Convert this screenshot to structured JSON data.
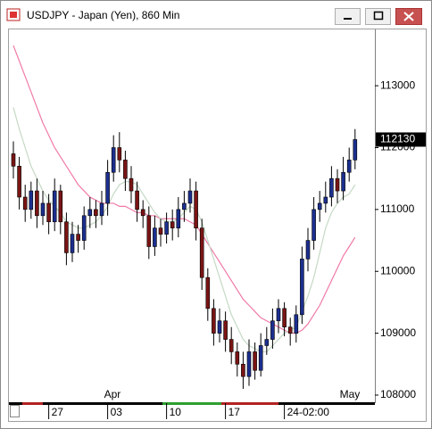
{
  "chart_data": {
    "type": "candlestick",
    "title": "USDJPY - Japan (Yen), 860 Min",
    "categories": [
      null,
      null,
      null,
      null,
      null,
      null,
      "27",
      null,
      null,
      null,
      null,
      null,
      null,
      null,
      null,
      null,
      "03",
      null,
      null,
      null,
      null,
      null,
      null,
      null,
      null,
      null,
      "10",
      null,
      null,
      null,
      null,
      null,
      null,
      null,
      null,
      null,
      "17",
      null,
      null,
      null,
      null,
      null,
      null,
      null,
      null,
      null,
      "24-02:00",
      null,
      null,
      null,
      null,
      null,
      null,
      null,
      null,
      null,
      null,
      null,
      null
    ],
    "months": [
      null,
      null,
      null,
      null,
      null,
      null,
      null,
      null,
      null,
      null,
      null,
      null,
      null,
      null,
      null,
      null,
      "Apr",
      null,
      null,
      null,
      null,
      null,
      null,
      null,
      null,
      null,
      null,
      null,
      null,
      null,
      null,
      null,
      null,
      null,
      null,
      null,
      null,
      null,
      null,
      null,
      null,
      null,
      null,
      null,
      null,
      null,
      null,
      null,
      null,
      null,
      null,
      null,
      null,
      null,
      null,
      null,
      "May",
      null,
      null
    ],
    "open": [
      111900,
      111700,
      111200,
      111000,
      111300,
      110900,
      111100,
      110800,
      111300,
      110800,
      110300,
      110600,
      110500,
      110900,
      111000,
      110900,
      111100,
      111600,
      112000,
      111800,
      111500,
      111300,
      111000,
      110900,
      110400,
      110700,
      110600,
      110800,
      110700,
      111000,
      111100,
      111300,
      110700,
      109900,
      109400,
      109000,
      109200,
      108900,
      108700,
      108500,
      108300,
      108700,
      108400,
      108800,
      108900,
      109200,
      109400,
      109100,
      109000,
      109300,
      110200,
      110500,
      111000,
      111100,
      111200,
      111500,
      111300,
      111600,
      111800
    ],
    "high": [
      112100,
      111850,
      111400,
      111450,
      111500,
      111300,
      111250,
      111500,
      111400,
      110950,
      110800,
      110750,
      111050,
      111200,
      111150,
      111300,
      111800,
      112200,
      112250,
      111950,
      111700,
      111450,
      111150,
      111050,
      110900,
      110850,
      110950,
      111000,
      111200,
      111300,
      111500,
      111450,
      110850,
      110050,
      109550,
      109400,
      109350,
      109100,
      108850,
      108700,
      108900,
      108850,
      109000,
      109100,
      109400,
      109550,
      109500,
      109250,
      109450,
      110400,
      110700,
      111200,
      111300,
      111450,
      111700,
      111650,
      111850,
      112000,
      112300
    ],
    "low": [
      111500,
      111000,
      110800,
      110850,
      110700,
      110750,
      110600,
      110650,
      110600,
      110100,
      110150,
      110300,
      110350,
      110700,
      110700,
      110750,
      110900,
      111450,
      111600,
      111300,
      111100,
      110800,
      110700,
      110200,
      110250,
      110400,
      110450,
      110500,
      110550,
      110800,
      110950,
      110500,
      109700,
      109200,
      108800,
      108850,
      108700,
      108500,
      108300,
      108100,
      108150,
      108250,
      108300,
      108650,
      108750,
      109000,
      108950,
      108800,
      108850,
      109150,
      110000,
      110350,
      110800,
      110950,
      111050,
      111100,
      111150,
      111450,
      111650
    ],
    "close": [
      111700,
      111200,
      111000,
      111300,
      110900,
      111100,
      110800,
      111300,
      110800,
      110300,
      110600,
      110500,
      110900,
      111000,
      110900,
      111100,
      111600,
      112000,
      111800,
      111500,
      111300,
      111000,
      110900,
      110400,
      110700,
      110600,
      110800,
      110700,
      111000,
      111100,
      111300,
      110700,
      109900,
      109400,
      109000,
      109200,
      108900,
      108700,
      108500,
      108300,
      108700,
      108400,
      108800,
      108900,
      109200,
      109400,
      109100,
      109000,
      109300,
      110200,
      110500,
      111000,
      111100,
      111200,
      111500,
      111300,
      111600,
      111800,
      112130
    ],
    "up_color": "#1c2f8f",
    "down_color": "#7a1414",
    "moving_averages": [
      {
        "color": "#f07aa8",
        "values": [
          113650,
          113400,
          113150,
          112900,
          112650,
          112400,
          112200,
          112000,
          111850,
          111700,
          111550,
          111400,
          111300,
          111200,
          111150,
          111100,
          111100,
          111100,
          111050,
          111050,
          111000,
          110950,
          110950,
          110900,
          110900,
          110850,
          110850,
          110850,
          110850,
          110850,
          110800,
          110750,
          110600,
          110450,
          110300,
          110150,
          110000,
          109850,
          109700,
          109550,
          109450,
          109350,
          109250,
          109200,
          109150,
          109100,
          109050,
          109000,
          109000,
          109050,
          109150,
          109300,
          109450,
          109650,
          109850,
          110050,
          110250,
          110400,
          110550
        ]
      },
      {
        "color": "#c5d9c5",
        "values": [
          112650,
          112300,
          112000,
          111700,
          111500,
          111300,
          111150,
          111050,
          110950,
          110800,
          110750,
          110700,
          110700,
          110750,
          110800,
          110900,
          111050,
          111250,
          111400,
          111450,
          111450,
          111400,
          111250,
          111100,
          110950,
          110850,
          110800,
          110800,
          110850,
          110950,
          111050,
          111000,
          110800,
          110500,
          110200,
          109900,
          109600,
          109300,
          109100,
          108900,
          108800,
          108750,
          108700,
          108700,
          108800,
          108900,
          109000,
          109050,
          109100,
          109350,
          109600,
          109900,
          110300,
          110700,
          110950,
          111100,
          111200,
          111250,
          111400
        ]
      }
    ],
    "ylim": [
      107870,
      113910
    ],
    "yticks": [
      108000,
      109000,
      110000,
      111000,
      112000,
      113000
    ]
  }
}
